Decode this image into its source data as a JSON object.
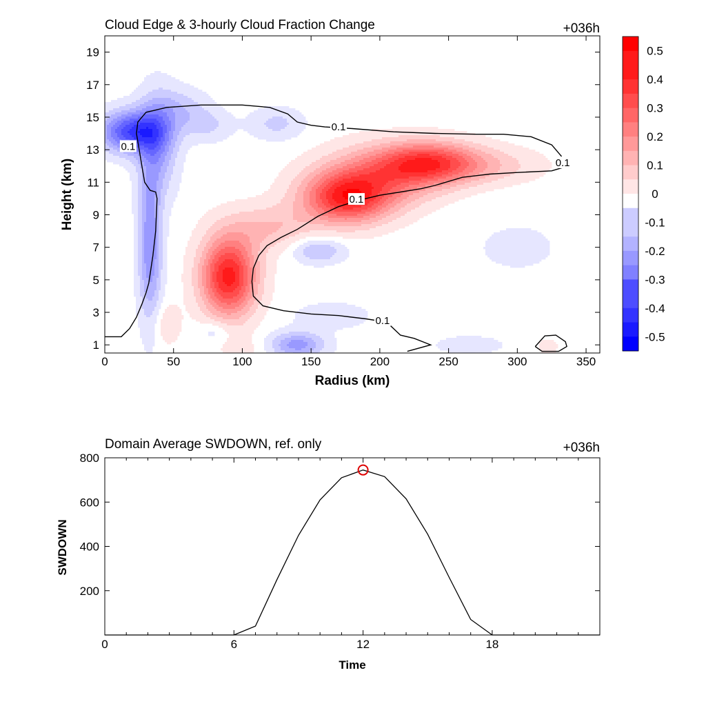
{
  "colors": {
    "red_max": "#ff0000",
    "blue_min": "#0000ff",
    "contour": "#000000",
    "marker": "#dd0000",
    "zero": "#ffffff"
  },
  "chart_data": [
    {
      "type": "heatmap",
      "title": "Cloud Edge & 3-hourly Cloud Fraction Change",
      "time_label": "+036h",
      "xlabel": "Radius (km)",
      "ylabel": "Height (km)",
      "xlim": [
        0,
        360
      ],
      "ylim": [
        0.5,
        20
      ],
      "xticks": [
        "0",
        "50",
        "100",
        "150",
        "200",
        "250",
        "300",
        "350"
      ],
      "yticks": [
        "1",
        "3",
        "5",
        "7",
        "9",
        "11",
        "13",
        "15",
        "17",
        "19"
      ],
      "colorbar": {
        "range": [
          -0.55,
          0.55
        ],
        "step": 0.05,
        "tick_labels": [
          "0.5",
          "0.4",
          "0.3",
          "0.2",
          "0.1",
          "0",
          "-0.1",
          "-0.2",
          "-0.3",
          "-0.4",
          "-0.5"
        ]
      },
      "features": [
        {
          "x": 90,
          "y": 5.2,
          "sx": 14,
          "sy": 1.7,
          "amp": 0.45
        },
        {
          "x": 120,
          "y": 8.2,
          "sx": 22,
          "sy": 1.0,
          "amp": 0.12
        },
        {
          "x": 175,
          "y": 10.0,
          "sx": 22,
          "sy": 1.1,
          "amp": 0.38
        },
        {
          "x": 200,
          "y": 11.3,
          "sx": 30,
          "sy": 1.3,
          "amp": 0.22
        },
        {
          "x": 235,
          "y": 12.2,
          "sx": 25,
          "sy": 0.9,
          "amp": 0.33
        },
        {
          "x": 275,
          "y": 12.0,
          "sx": 30,
          "sy": 0.8,
          "amp": 0.1
        },
        {
          "x": 45,
          "y": 2.3,
          "sx": 7,
          "sy": 0.9,
          "amp": 0.07
        },
        {
          "x": 100,
          "y": 0.8,
          "sx": 12,
          "sy": 0.5,
          "amp": 0.04
        },
        {
          "x": 322,
          "y": 0.9,
          "sx": 6,
          "sy": 0.4,
          "amp": 0.05
        },
        {
          "x": 20,
          "y": 14.1,
          "sx": 16,
          "sy": 0.9,
          "amp": -0.36
        },
        {
          "x": 38,
          "y": 13.3,
          "sx": 10,
          "sy": 2.2,
          "amp": -0.18
        },
        {
          "x": 33,
          "y": 7.0,
          "sx": 6,
          "sy": 3.2,
          "amp": -0.22
        },
        {
          "x": 55,
          "y": 15.5,
          "sx": 14,
          "sy": 0.9,
          "amp": -0.1
        },
        {
          "x": 75,
          "y": 14.5,
          "sx": 12,
          "sy": 0.7,
          "amp": -0.08
        },
        {
          "x": 125,
          "y": 14.6,
          "sx": 14,
          "sy": 0.7,
          "amp": -0.09
        },
        {
          "x": 155,
          "y": 6.8,
          "sx": 13,
          "sy": 0.55,
          "amp": -0.14
        },
        {
          "x": 140,
          "y": 1.0,
          "sx": 14,
          "sy": 0.55,
          "amp": -0.2
        },
        {
          "x": 165,
          "y": 2.8,
          "sx": 20,
          "sy": 0.6,
          "amp": -0.06
        },
        {
          "x": 265,
          "y": 1.0,
          "sx": 18,
          "sy": 0.4,
          "amp": -0.06
        },
        {
          "x": 80,
          "y": 1.8,
          "sx": 8,
          "sy": 0.5,
          "amp": -0.07
        },
        {
          "x": 300,
          "y": 7.0,
          "sx": 40,
          "sy": 2.0,
          "amp": -0.03
        }
      ],
      "contours": [
        {
          "label": "0.1",
          "points": [
            [
              0,
              1.5
            ],
            [
              12,
              1.5
            ],
            [
              18,
              2.0
            ],
            [
              23,
              2.7
            ],
            [
              27,
              3.5
            ],
            [
              30,
              4.2
            ],
            [
              32,
              4.8
            ],
            [
              35,
              6.5
            ],
            [
              37,
              8.0
            ],
            [
              38,
              10.0
            ],
            [
              37,
              10.4
            ],
            [
              33,
              10.5
            ],
            [
              29,
              11.0
            ],
            [
              27,
              12.0
            ],
            [
              25,
              13.0
            ],
            [
              23,
              14.0
            ],
            [
              24,
              14.7
            ],
            [
              30,
              15.3
            ],
            [
              45,
              15.6
            ],
            [
              70,
              15.75
            ],
            [
              100,
              15.75
            ],
            [
              120,
              15.6
            ],
            [
              133,
              15.2
            ],
            [
              140,
              14.7
            ],
            [
              150,
              14.5
            ],
            [
              160,
              14.4
            ],
            [
              180,
              14.3
            ],
            [
              210,
              14.1
            ],
            [
              240,
              14.0
            ],
            [
              270,
              13.95
            ],
            [
              290,
              13.95
            ],
            [
              310,
              13.8
            ],
            [
              325,
              13.3
            ],
            [
              332,
              12.6
            ],
            [
              333,
              11.9
            ],
            [
              325,
              11.7
            ],
            [
              300,
              11.6
            ],
            [
              280,
              11.5
            ],
            [
              260,
              11.3
            ],
            [
              240,
              10.8
            ],
            [
              230,
              10.6
            ],
            [
              215,
              10.4
            ],
            [
              200,
              10.2
            ],
            [
              185,
              9.9
            ],
            [
              170,
              9.5
            ],
            [
              155,
              8.9
            ],
            [
              140,
              8.1
            ],
            [
              128,
              7.6
            ],
            [
              118,
              7.1
            ],
            [
              112,
              6.5
            ],
            [
              108,
              5.7
            ],
            [
              107,
              4.9
            ],
            [
              108,
              4.0
            ],
            [
              115,
              3.4
            ],
            [
              130,
              3.1
            ],
            [
              150,
              2.9
            ],
            [
              170,
              2.8
            ],
            [
              190,
              2.6
            ],
            [
              205,
              2.4
            ],
            [
              215,
              1.6
            ],
            [
              225,
              1.4
            ],
            [
              237,
              1.0
            ],
            [
              220,
              0.6
            ]
          ],
          "labels_at": [
            [
              170,
              14.4
            ],
            [
              183,
              9.95
            ],
            [
              202,
              2.5
            ],
            [
              17,
              13.2
            ],
            [
              333,
              12.2
            ]
          ]
        },
        {
          "label": "",
          "points": [
            [
              313,
              0.9
            ],
            [
              320,
              1.55
            ],
            [
              328,
              1.6
            ],
            [
              335,
              1.2
            ],
            [
              336,
              0.9
            ],
            [
              330,
              0.6
            ],
            [
              318,
              0.6
            ],
            [
              313,
              0.9
            ]
          ],
          "labels_at": []
        }
      ]
    },
    {
      "type": "line",
      "title": "Domain Average SWDOWN, ref. only",
      "time_label": "+036h",
      "xlabel": "Time",
      "ylabel": "SWDOWN",
      "xlim": [
        0,
        23
      ],
      "ylim": [
        0,
        800
      ],
      "xticks": [
        "0",
        "6",
        "12",
        "18"
      ],
      "yticks": [
        "200",
        "400",
        "600",
        "800"
      ],
      "x": [
        0,
        1,
        2,
        3,
        4,
        5,
        6,
        7,
        8,
        9,
        10,
        11,
        12,
        13,
        14,
        15,
        16,
        17,
        18,
        19,
        20,
        21,
        22,
        23
      ],
      "values": [
        0,
        0,
        0,
        0,
        0,
        0,
        0,
        40,
        250,
        450,
        610,
        710,
        745,
        715,
        615,
        455,
        260,
        70,
        0,
        0,
        0,
        0,
        0,
        0
      ],
      "highlight": {
        "x": 12,
        "y": 745
      }
    }
  ]
}
